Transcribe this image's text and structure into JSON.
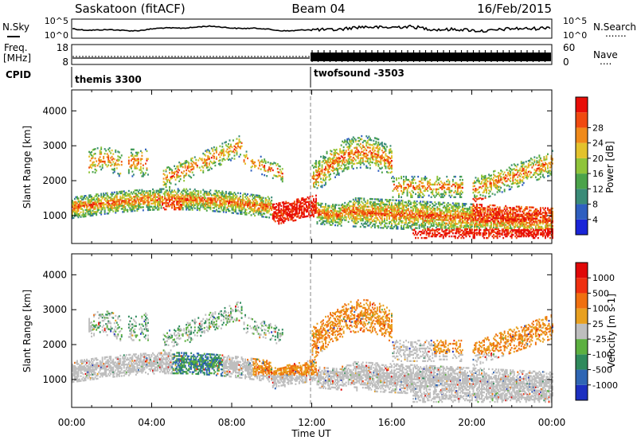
{
  "header": {
    "station": "Saskatoon (fitACF)",
    "beam": "Beam 04",
    "date": "16/Feb/2015"
  },
  "noise_panel": {
    "left_label": "N.Sky",
    "left_ticks": [
      "10^5",
      "10^0"
    ],
    "right_ticks": [
      "10^5",
      "10^0"
    ],
    "right_label": "N.Search",
    "right_legend_line": "......."
  },
  "freq_panel": {
    "left_label_line1": "Freq.",
    "left_label_line2": "[MHz]",
    "left_ticks": [
      "18",
      "8"
    ],
    "right_ticks": [
      "60",
      "0"
    ],
    "right_label": "Nave",
    "right_legend_line": "...."
  },
  "cpid": {
    "label": "CPID",
    "programs": [
      {
        "name": "themis 3300",
        "start_hour": 0
      },
      {
        "name": "twofsound -3503",
        "start_hour": 12
      }
    ]
  },
  "chart_data": [
    {
      "type": "heatmap",
      "quantity": "Power",
      "ylabel": "Slant Range [km]",
      "y_ticks": [
        "1000",
        "2000",
        "3000",
        "4000"
      ],
      "ylim": [
        200,
        4600
      ],
      "xlim": [
        0,
        24
      ],
      "colorbar": {
        "label": "Power [dB]",
        "tick_labels": [
          "4",
          "8",
          "12",
          "16",
          "20",
          "24",
          "28"
        ],
        "colors": [
          "#1a25d8",
          "#2f5fc0",
          "#3a8b78",
          "#4ba34a",
          "#8fc43a",
          "#e3c22c",
          "#f08a1a",
          "#f04a10",
          "#e80e08"
        ]
      }
    },
    {
      "type": "heatmap",
      "quantity": "Velocity",
      "ylabel": "Slant Range [km]",
      "y_ticks": [
        "1000",
        "2000",
        "3000",
        "4000"
      ],
      "ylim": [
        200,
        4600
      ],
      "xlim": [
        0,
        24
      ],
      "xlabel": "Time UT",
      "x_ticks": [
        "00:00",
        "04:00",
        "08:00",
        "12:00",
        "16:00",
        "20:00",
        "00:00"
      ],
      "colorbar": {
        "label": "Velocity [m s-1]",
        "tick_labels": [
          "1000",
          "500",
          "100",
          "25",
          "-25",
          "-100",
          "-500",
          "-1000"
        ],
        "colors": [
          "#1c2fc0",
          "#2f66b4",
          "#2f8a5c",
          "#5cb040",
          "#bebebe",
          "#e8a020",
          "#f07010",
          "#ef3010",
          "#e00808"
        ]
      }
    }
  ]
}
